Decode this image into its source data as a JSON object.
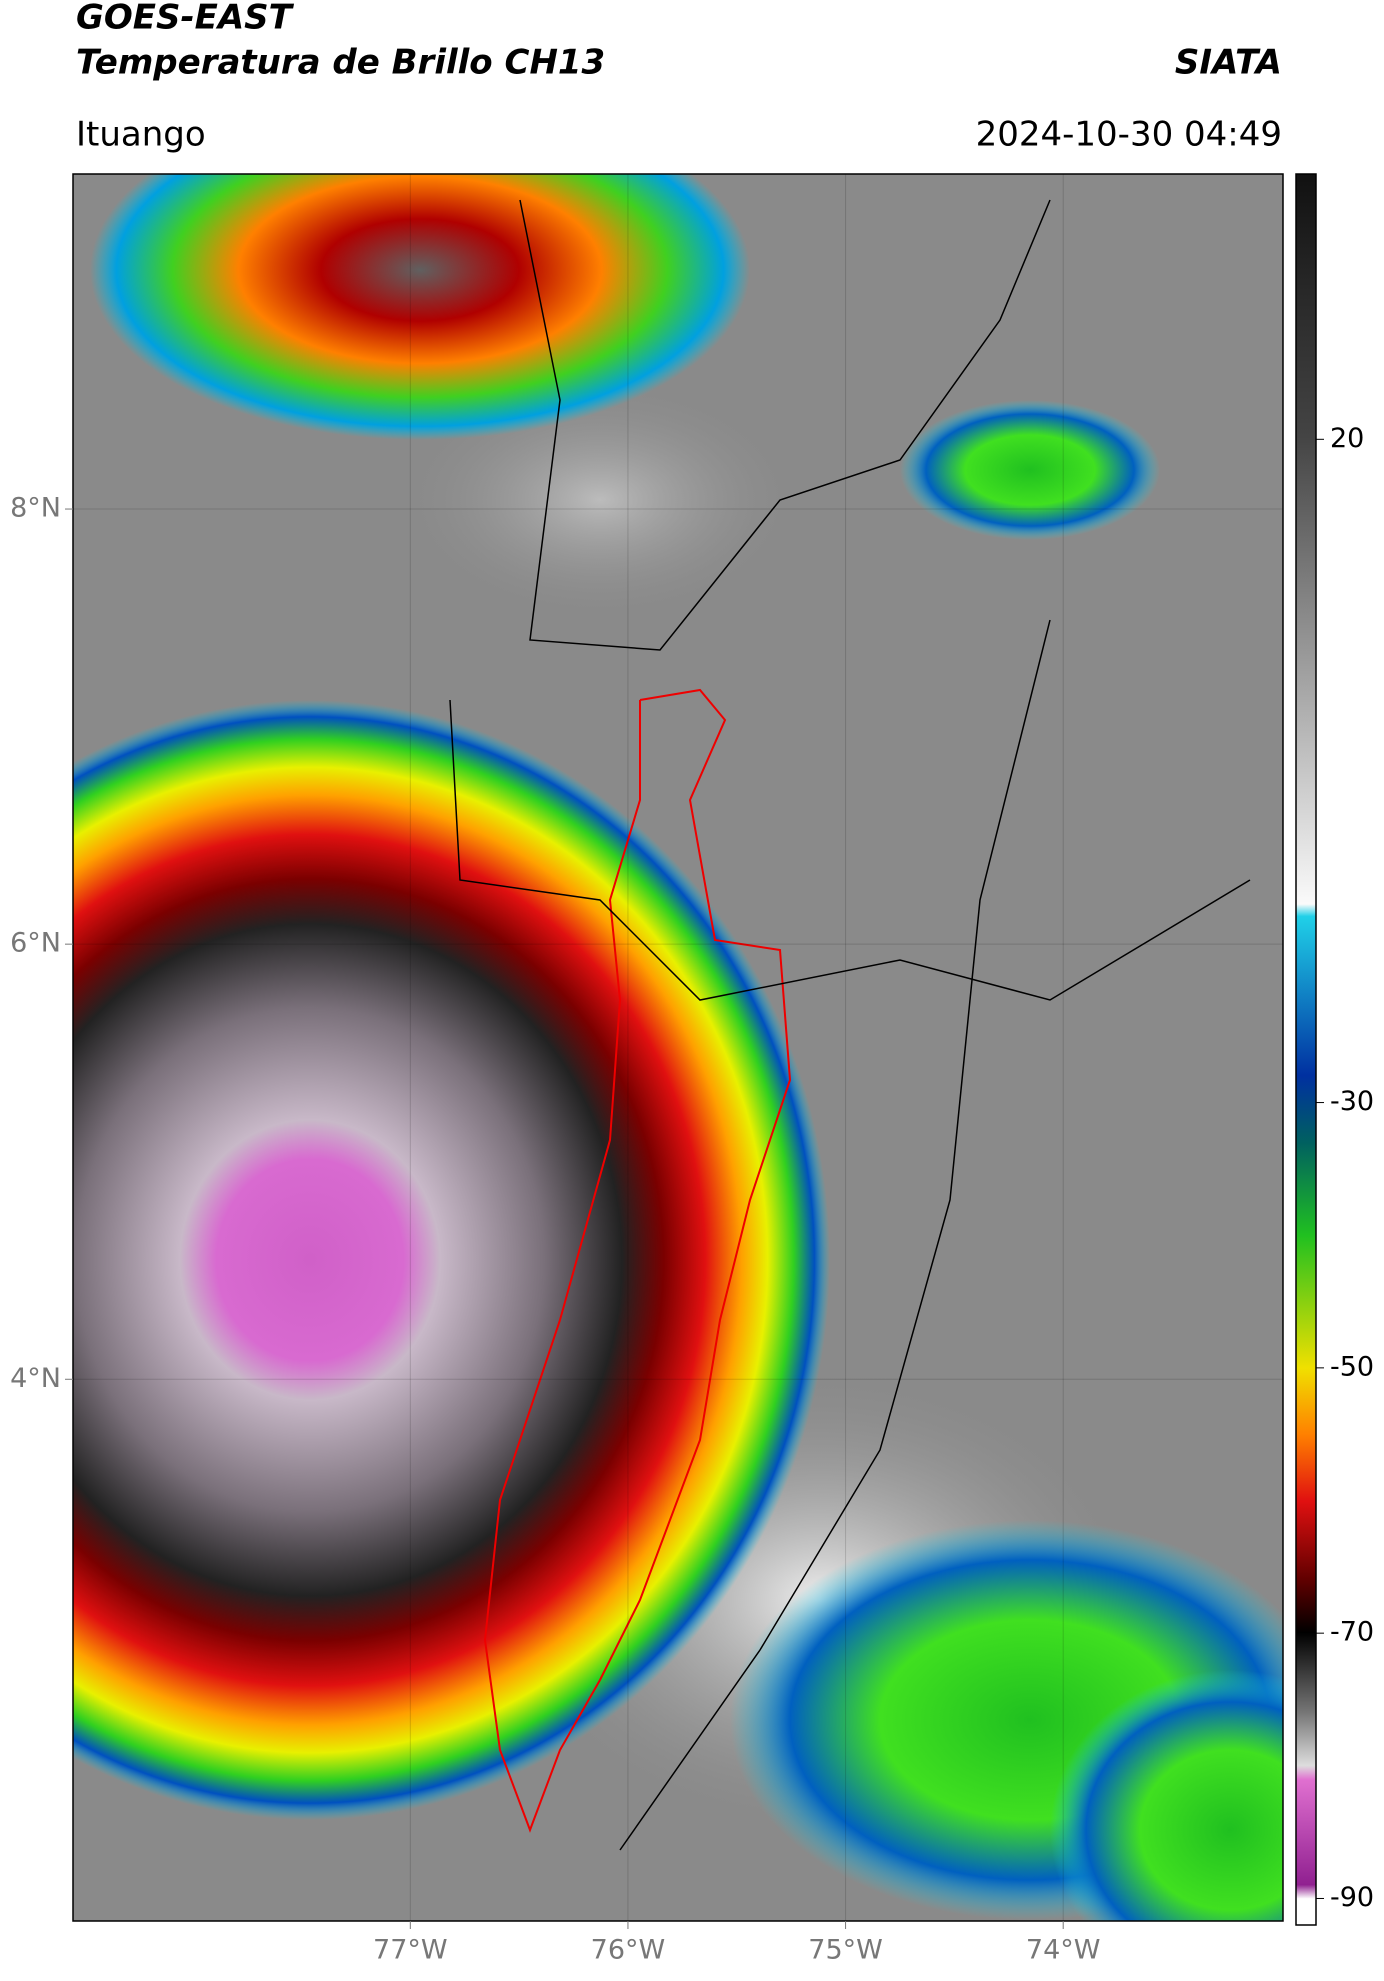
{
  "header": {
    "title_line1": "GOES-EAST",
    "title_line2": "Temperatura de Brillo CH13",
    "source": "SIATA",
    "location": "Ituango",
    "datetime": "2024-10-30 04:49"
  },
  "map": {
    "xlim": [
      -78.55,
      -72.99
    ],
    "ylim": [
      1.51,
      9.54
    ],
    "xticks": [
      {
        "value": -77,
        "label": "77°W"
      },
      {
        "value": -76,
        "label": "76°W"
      },
      {
        "value": -75,
        "label": "75°W"
      },
      {
        "value": -74,
        "label": "74°W"
      }
    ],
    "yticks": [
      {
        "value": 8,
        "label": "8°N"
      },
      {
        "value": 6,
        "label": "6°N"
      },
      {
        "value": 4,
        "label": "4°N"
      }
    ]
  },
  "colorbar": {
    "lim": [
      -92,
      40
    ],
    "ticks": [
      20,
      -30,
      -50,
      -70,
      -90
    ]
  }
}
